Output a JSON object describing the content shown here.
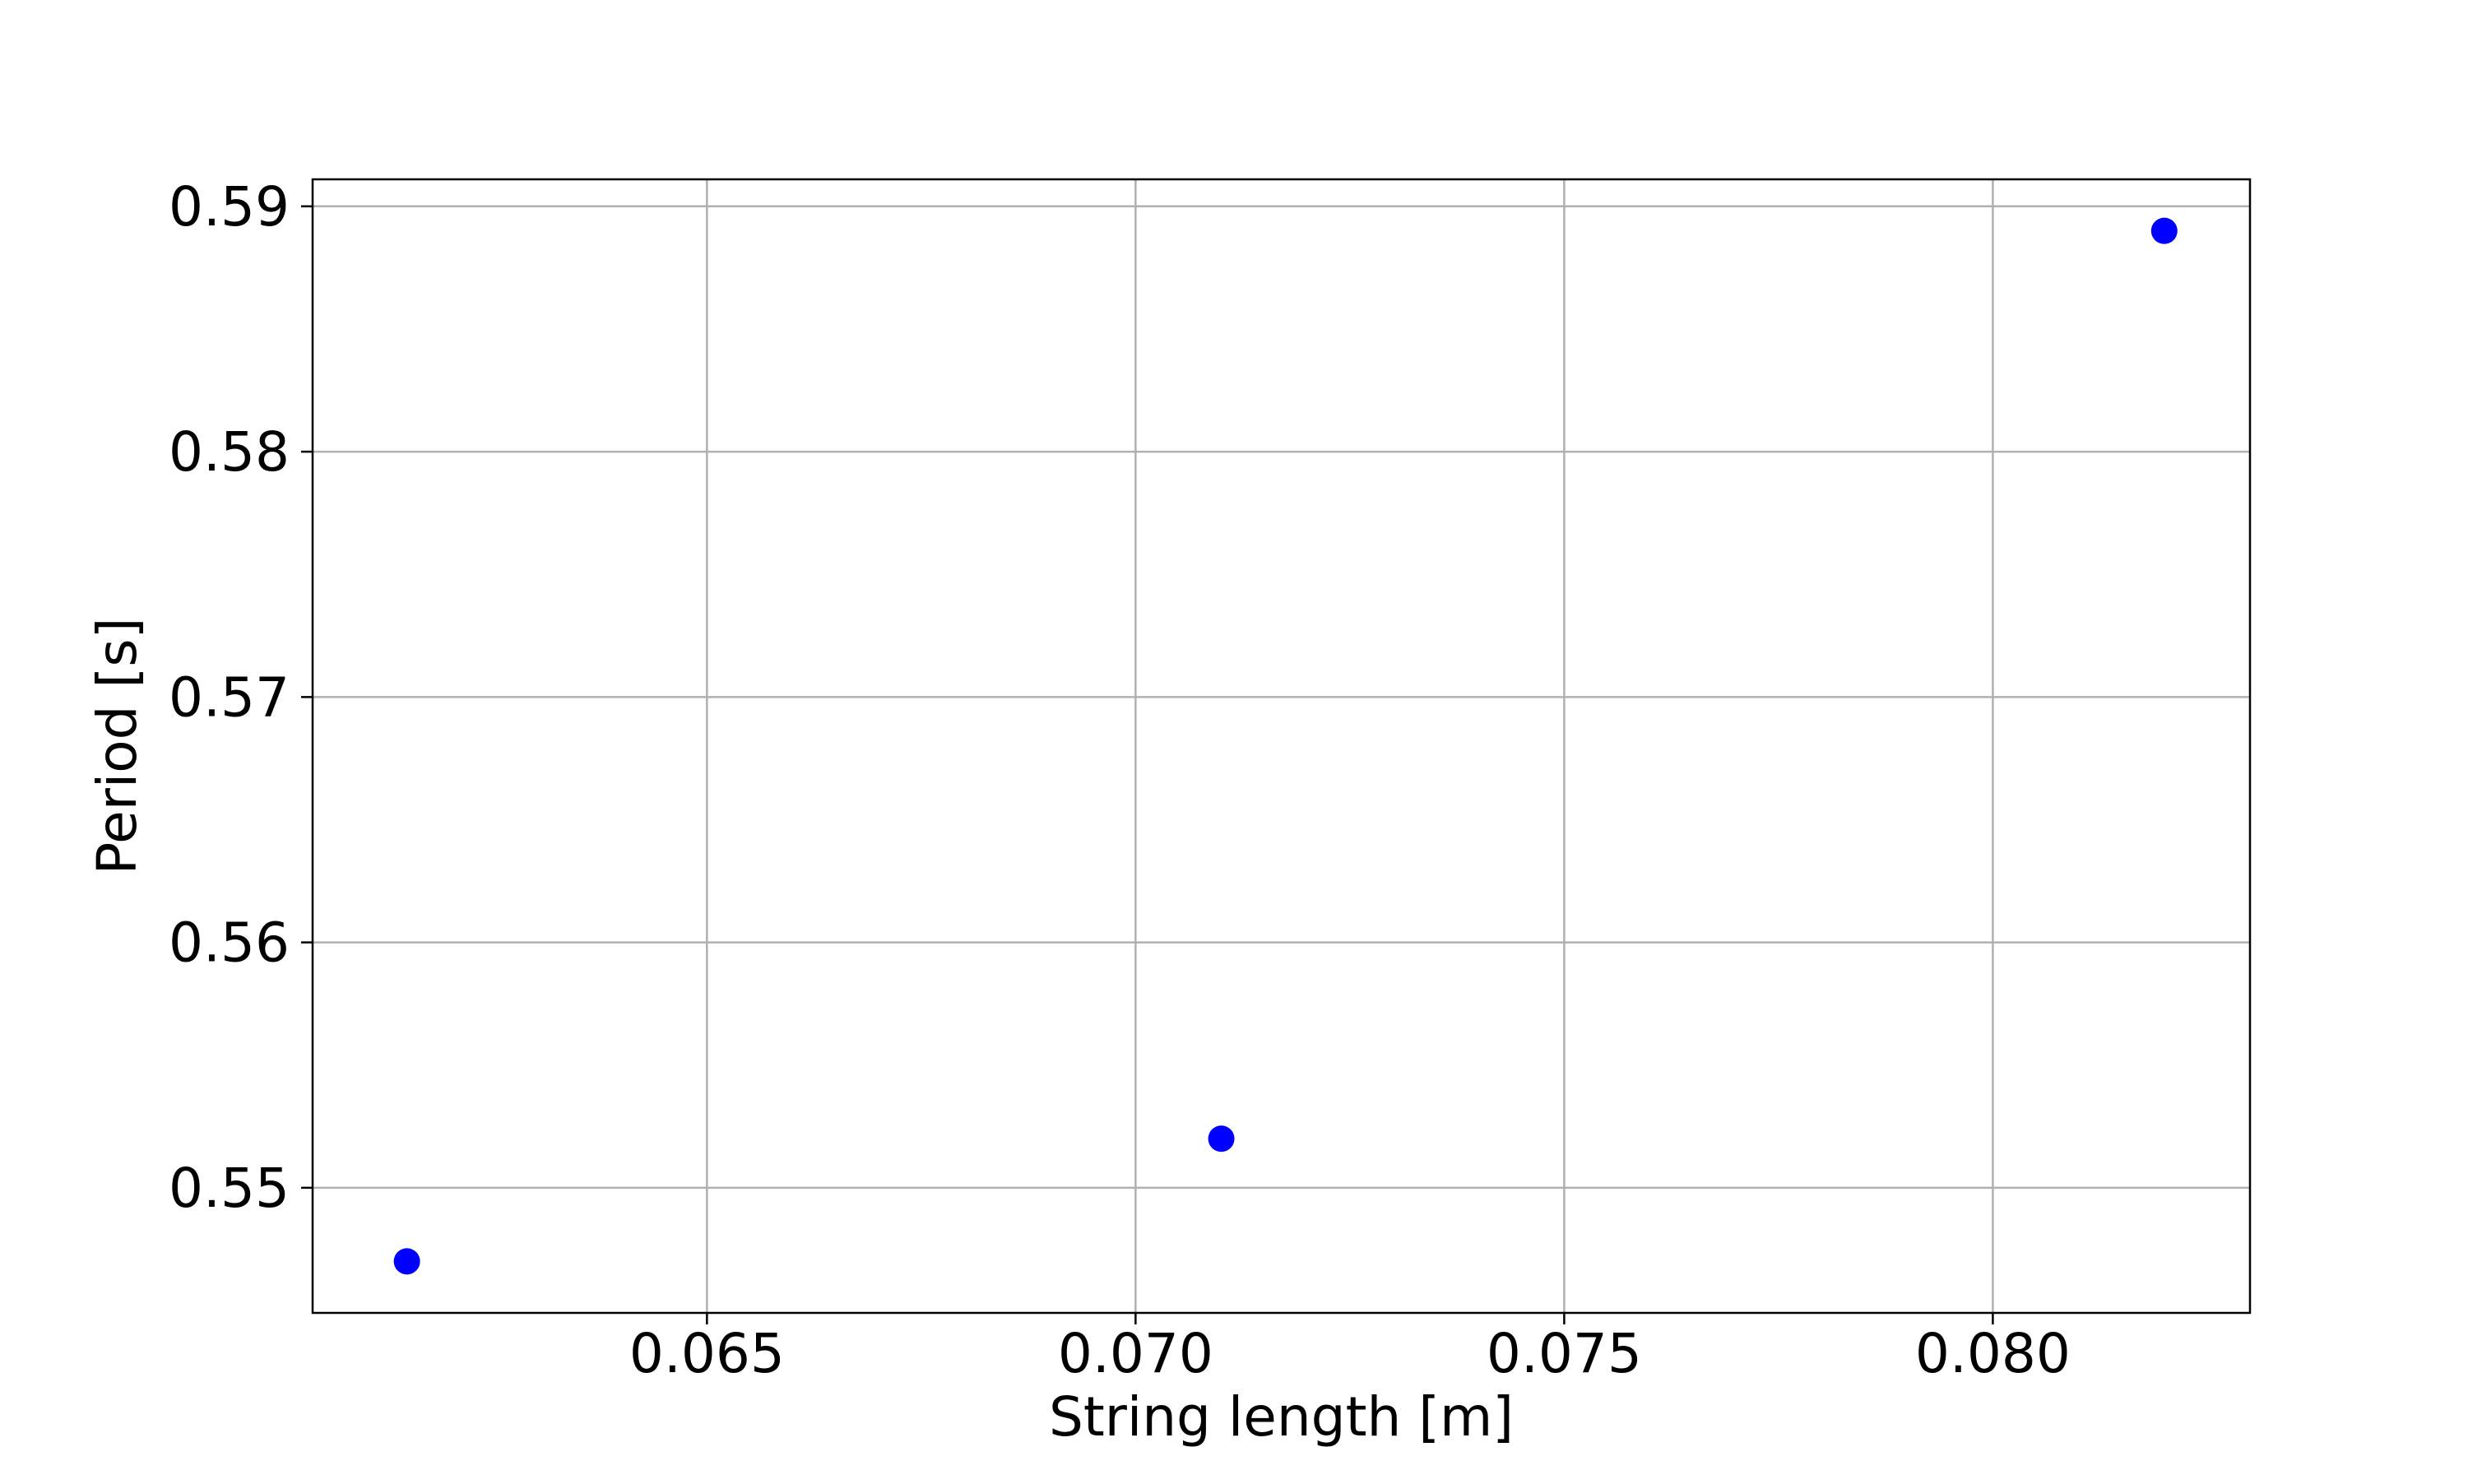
{
  "chart_data": {
    "type": "scatter",
    "title": "",
    "xlabel": "String length [m]",
    "ylabel": "Period [s]",
    "xlim": [
      0.0604,
      0.083
    ],
    "ylim": [
      0.5449,
      0.5911
    ],
    "xticks": [
      0.065,
      0.07,
      0.075,
      0.08
    ],
    "xtick_labels": [
      "0.065",
      "0.070",
      "0.075",
      "0.080"
    ],
    "yticks": [
      0.55,
      0.56,
      0.57,
      0.58,
      0.59
    ],
    "ytick_labels": [
      "0.55",
      "0.56",
      "0.57",
      "0.58",
      "0.59"
    ],
    "grid": true,
    "marker_color": "#0000ff",
    "series": [
      {
        "x": [
          0.0615,
          0.071,
          0.082
        ],
        "y": [
          0.547,
          0.552,
          0.589
        ]
      }
    ]
  }
}
